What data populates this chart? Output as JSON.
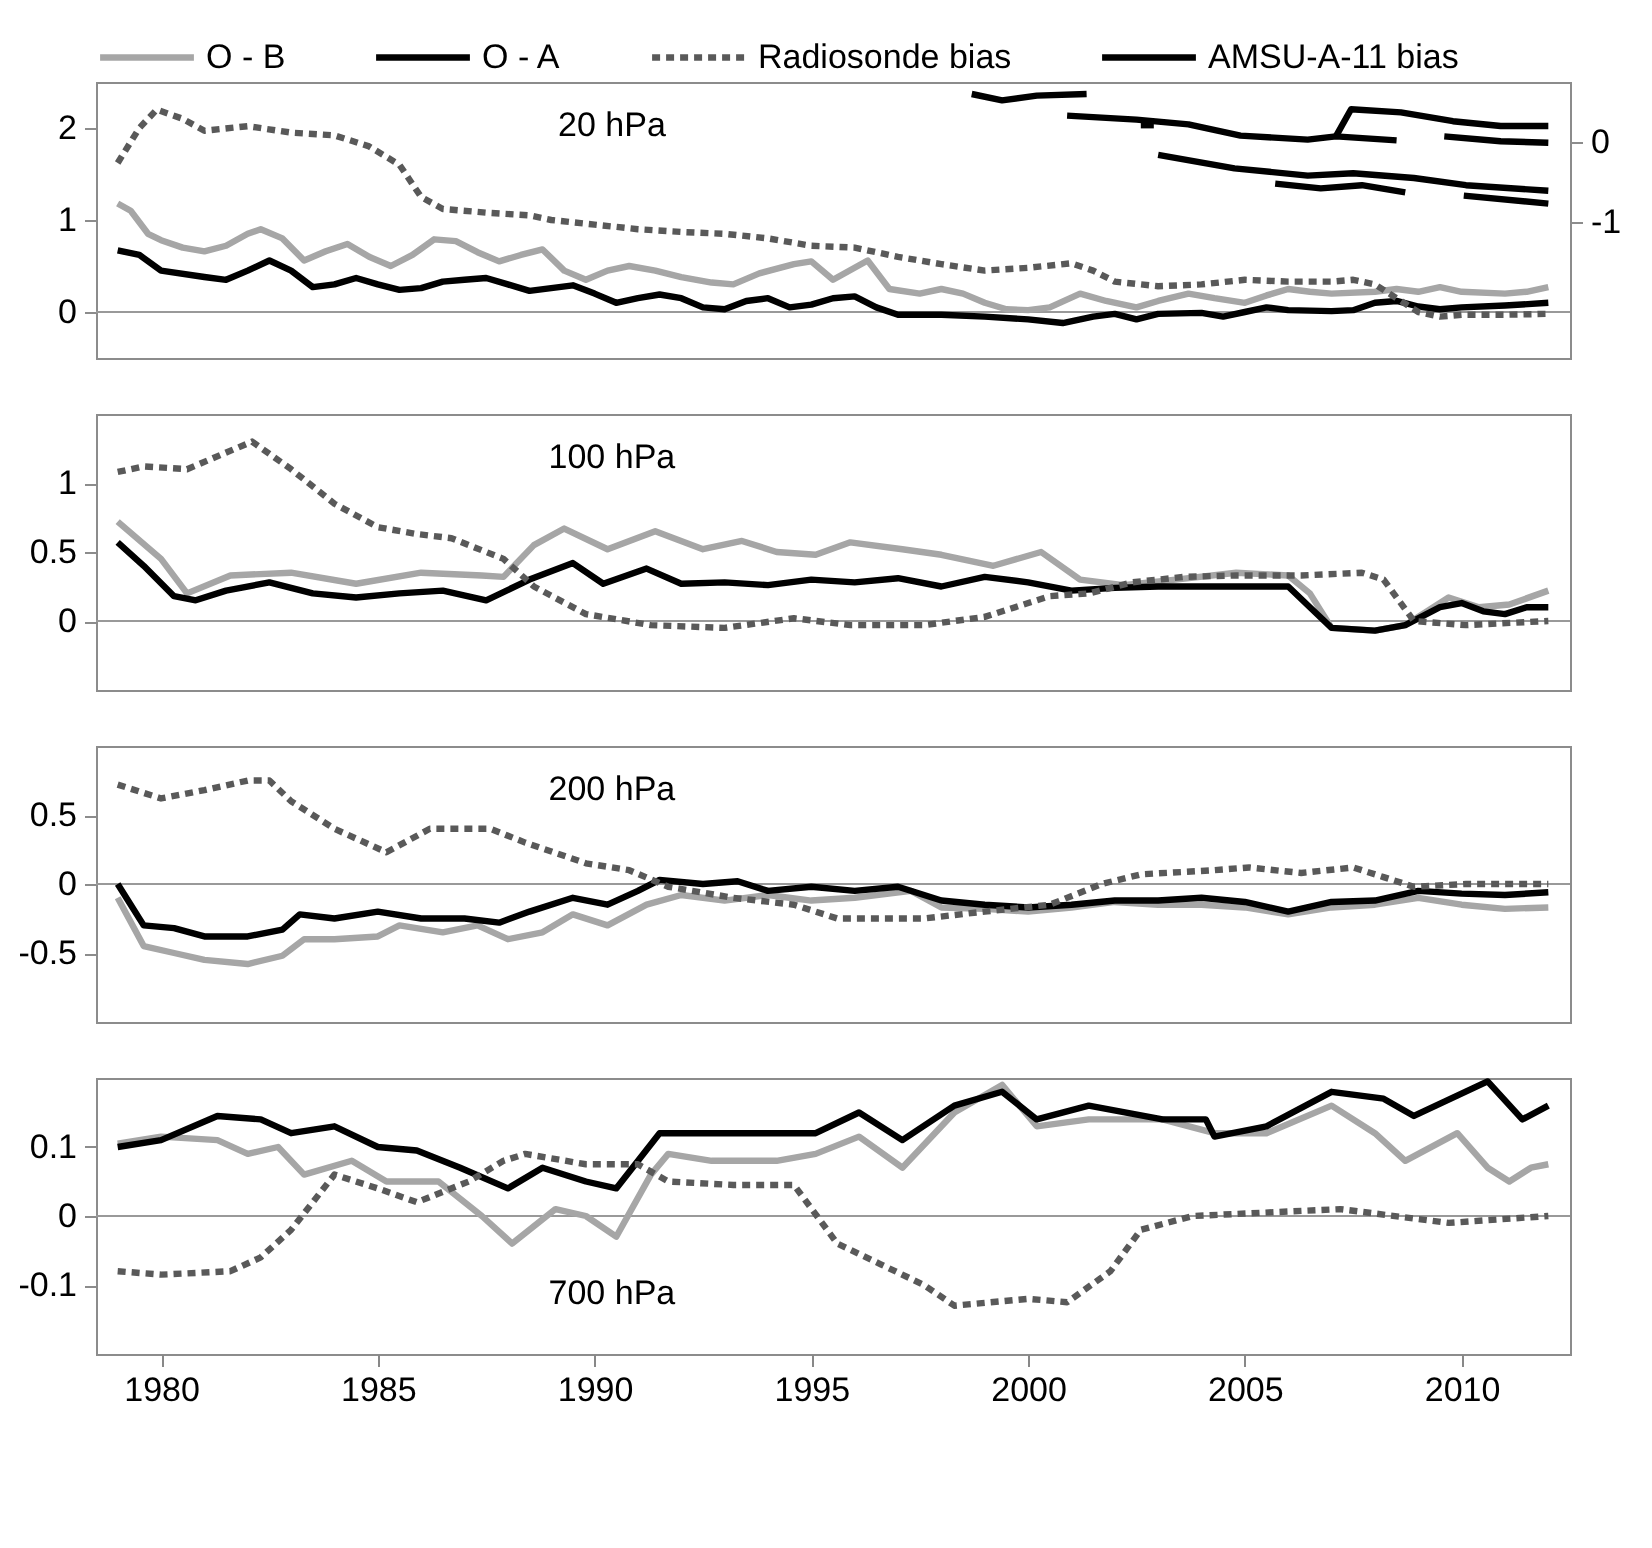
{
  "chart_data": [
    {
      "type": "line",
      "annotations": [
        "20 hPa"
      ],
      "legend": "top",
      "tick_labels": "y",
      "xlim": [
        1978.5,
        2012.5
      ],
      "xticks": [
        1980,
        1985,
        1990,
        1995,
        2000,
        2005,
        2010
      ],
      "ylim": [
        -0.5,
        2.5
      ],
      "yticks": [
        0,
        1,
        2
      ],
      "y2lim": [
        -2.7,
        0.75
      ],
      "y2ticks": [
        0,
        -1
      ],
      "ref_lines": [
        {
          "axis": "y",
          "value": 0,
          "color": "#999999"
        }
      ],
      "series": [
        {
          "name": "O - B",
          "color": "#a6a6a6",
          "line_style": "solid",
          "x": [
            1979.0,
            1979.3,
            1979.7,
            1980,
            1980.5,
            1981,
            1981.5,
            1982,
            1982.3,
            1982.8,
            1983.3,
            1983.8,
            1984.3,
            1984.8,
            1985.3,
            1985.8,
            1986.3,
            1986.8,
            1987.3,
            1987.8,
            1988.3,
            1988.8,
            1989.3,
            1989.8,
            1990.3,
            1990.8,
            1991.4,
            1992,
            1992.7,
            1993.2,
            1993.8,
            1994.6,
            1995,
            1995.5,
            1996.3,
            1996.8,
            1997.5,
            1998,
            1998.5,
            1999,
            1999.5,
            2000,
            2000.5,
            2001.2,
            2001.8,
            2002.5,
            2003,
            2003.7,
            2004.3,
            2005,
            2005.5,
            2006,
            2006.5,
            2007,
            2008,
            2008.5,
            2009,
            2009.5,
            2010,
            2011,
            2011.5,
            2012
          ],
          "values": [
            1.18,
            1.1,
            0.85,
            0.78,
            0.7,
            0.66,
            0.72,
            0.85,
            0.9,
            0.8,
            0.56,
            0.66,
            0.74,
            0.6,
            0.5,
            0.62,
            0.79,
            0.77,
            0.65,
            0.55,
            0.62,
            0.68,
            0.45,
            0.35,
            0.45,
            0.5,
            0.45,
            0.38,
            0.32,
            0.3,
            0.42,
            0.52,
            0.55,
            0.35,
            0.56,
            0.25,
            0.2,
            0.25,
            0.2,
            0.1,
            0.03,
            0.02,
            0.05,
            0.2,
            0.12,
            0.05,
            0.12,
            0.2,
            0.15,
            0.1,
            0.18,
            0.25,
            0.22,
            0.2,
            0.22,
            0.25,
            0.22,
            0.27,
            0.22,
            0.2,
            0.22,
            0.27
          ]
        },
        {
          "name": "O - A",
          "color": "#000000",
          "line_style": "solid",
          "x": [
            1979,
            1979.5,
            1980,
            1981,
            1981.5,
            1982,
            1982.5,
            1983,
            1983.5,
            1984,
            1984.5,
            1985,
            1985.5,
            1986,
            1986.5,
            1987,
            1987.5,
            1988,
            1988.5,
            1989,
            1989.5,
            1990,
            1990.5,
            1991,
            1991.5,
            1992,
            1992.5,
            1993,
            1993.5,
            1994,
            1994.5,
            1995,
            1995.5,
            1996,
            1996.5,
            1997,
            1998,
            1999,
            2000,
            2000.8,
            2001.5,
            2002,
            2002.5,
            2003,
            2004,
            2004.5,
            2005,
            2005.5,
            2006,
            2007,
            2007.5,
            2008,
            2008.5,
            2009,
            2009.5,
            2010,
            2011,
            2012
          ],
          "values": [
            0.67,
            0.62,
            0.45,
            0.38,
            0.35,
            0.45,
            0.56,
            0.45,
            0.27,
            0.3,
            0.37,
            0.3,
            0.24,
            0.26,
            0.33,
            0.35,
            0.37,
            0.3,
            0.23,
            0.26,
            0.29,
            0.2,
            0.1,
            0.15,
            0.19,
            0.15,
            0.05,
            0.03,
            0.12,
            0.15,
            0.05,
            0.08,
            0.15,
            0.17,
            0.05,
            -0.03,
            -0.03,
            -0.05,
            -0.08,
            -0.12,
            -0.05,
            -0.02,
            -0.08,
            -0.02,
            -0.01,
            -0.05,
            0.0,
            0.05,
            0.02,
            0.01,
            0.02,
            0.1,
            0.12,
            0.06,
            0.03,
            0.05,
            0.07,
            0.1
          ]
        },
        {
          "name": "Radiosonde bias",
          "color": "#595959",
          "line_style": "dotted",
          "x": [
            1979,
            1979.5,
            1979.9,
            1980.5,
            1981,
            1982,
            1983,
            1984,
            1984.8,
            1985.5,
            1986,
            1986.5,
            1987.5,
            1988.5,
            1989,
            1990,
            1991,
            1992,
            1993,
            1994,
            1995,
            1996,
            1997,
            1998,
            1999,
            2000,
            2001,
            2001.5,
            2002,
            2003,
            2004,
            2005,
            2006,
            2007,
            2007.5,
            2008,
            2008.5,
            2009,
            2009.5,
            2010,
            2011,
            2012
          ],
          "values": [
            1.62,
            2.0,
            2.2,
            2.1,
            1.97,
            2.02,
            1.95,
            1.92,
            1.8,
            1.6,
            1.25,
            1.12,
            1.08,
            1.05,
            1.0,
            0.95,
            0.9,
            0.87,
            0.85,
            0.8,
            0.72,
            0.7,
            0.6,
            0.52,
            0.45,
            0.48,
            0.53,
            0.45,
            0.33,
            0.28,
            0.3,
            0.35,
            0.33,
            0.33,
            0.35,
            0.3,
            0.15,
            0.0,
            -0.05,
            -0.03,
            -0.03,
            -0.02
          ]
        },
        {
          "name": "AMSU-A-11 bias",
          "color": "#000000",
          "line_style": "solid",
          "axis": "y2",
          "x": [
            1998.7,
            1999.4,
            2000.2,
            2001.35,
            null,
            2000.9,
            2002.5,
            2003.7,
            2004.9,
            2006.45,
            2007.1,
            2008.5,
            null,
            2007.1,
            2007.45,
            2008.6,
            2009.8,
            2010.9,
            2012.0,
            null,
            2002.6,
            2002.9,
            null,
            2009.6,
            2010.9,
            2012.0,
            null,
            2003.0,
            2004.76,
            2006.45,
            2007.5,
            2008.9,
            2010.1,
            2012.0,
            null,
            2005.7,
            2006.75,
            2007.7,
            2008.7,
            null,
            2010.05,
            2012.0
          ],
          "values": [
            0.6,
            0.52,
            0.58,
            0.6,
            null,
            0.33,
            0.28,
            0.22,
            0.08,
            0.03,
            0.07,
            0.02,
            null,
            0.07,
            0.41,
            0.37,
            0.26,
            0.2,
            0.2,
            null,
            0.21,
            0.21,
            null,
            0.07,
            0.01,
            -0.01,
            null,
            -0.16,
            -0.33,
            -0.42,
            -0.39,
            -0.45,
            -0.54,
            -0.61,
            null,
            -0.52,
            -0.58,
            -0.54,
            -0.63,
            null,
            -0.67,
            -0.77
          ]
        }
      ]
    },
    {
      "type": "line",
      "annotations": [
        "100 hPa"
      ],
      "tick_labels": "y",
      "xlim": [
        1978.5,
        2012.5
      ],
      "xticks": [
        1980,
        1985,
        1990,
        1995,
        2000,
        2005,
        2010
      ],
      "ylim": [
        -0.5,
        1.5
      ],
      "yticks": [
        0,
        0.5,
        1
      ],
      "ref_lines": [
        {
          "axis": "y",
          "value": 0,
          "color": "#999999"
        }
      ],
      "series": [
        {
          "color": "#a6a6a6",
          "line_style": "solid",
          "x": [
            1979,
            1980,
            1980.6,
            1981.6,
            1983,
            1984.5,
            1986,
            1987.4,
            1987.9,
            1988.6,
            1989.3,
            1990.3,
            1991.4,
            1992.5,
            1993.4,
            1994.2,
            1995.1,
            1995.9,
            1997.1,
            1998,
            1999.2,
            2000.3,
            2001.2,
            2002.2,
            2003.4,
            2004.8,
            2006,
            2006.5,
            2007,
            2008,
            2008.7,
            2009.7,
            2010.4,
            2011.1,
            2012
          ],
          "values": [
            0.72,
            0.45,
            0.2,
            0.33,
            0.35,
            0.27,
            0.35,
            0.33,
            0.32,
            0.55,
            0.67,
            0.52,
            0.65,
            0.52,
            0.58,
            0.5,
            0.48,
            0.57,
            0.52,
            0.48,
            0.4,
            0.5,
            0.3,
            0.26,
            0.3,
            0.35,
            0.33,
            0.2,
            -0.05,
            -0.07,
            -0.03,
            0.17,
            0.1,
            0.12,
            0.22
          ]
        },
        {
          "color": "#000000",
          "line_style": "solid",
          "x": [
            1979,
            1979.6,
            1980.3,
            1980.8,
            1981.5,
            1982.5,
            1983.5,
            1984.5,
            1985.5,
            1986.5,
            1987.5,
            1988.5,
            1989.5,
            1990.2,
            1991.2,
            1992,
            1993,
            1994,
            1995,
            1996,
            1997,
            1998,
            1999,
            2000,
            2001,
            2002,
            2003,
            2004,
            2005,
            2006,
            2006.5,
            2007,
            2008,
            2008.7,
            2009.5,
            2010,
            2010.5,
            2011,
            2011.5,
            2012
          ],
          "values": [
            0.57,
            0.4,
            0.18,
            0.15,
            0.22,
            0.28,
            0.2,
            0.17,
            0.2,
            0.22,
            0.15,
            0.3,
            0.42,
            0.27,
            0.38,
            0.27,
            0.28,
            0.26,
            0.3,
            0.28,
            0.31,
            0.25,
            0.32,
            0.28,
            0.22,
            0.24,
            0.25,
            0.25,
            0.25,
            0.25,
            0.1,
            -0.05,
            -0.07,
            -0.03,
            0.1,
            0.13,
            0.07,
            0.05,
            0.1,
            0.1
          ]
        },
        {
          "color": "#595959",
          "line_style": "dotted",
          "x": [
            1979,
            1979.6,
            1980.6,
            1982.1,
            1983,
            1984,
            1985,
            1985.9,
            1986.7,
            1987.9,
            1988.6,
            1989.8,
            1991.3,
            1993,
            1994.6,
            1995.9,
            1997.6,
            1999,
            2000.5,
            2001.4,
            2002.4,
            2003.6,
            2004.8,
            2006.3,
            2007.7,
            2008.2,
            2008.9,
            2010.1,
            2012
          ],
          "values": [
            1.08,
            1.12,
            1.1,
            1.3,
            1.1,
            0.85,
            0.68,
            0.63,
            0.6,
            0.45,
            0.25,
            0.05,
            -0.03,
            -0.05,
            0.02,
            -0.03,
            -0.03,
            0.03,
            0.18,
            0.2,
            0.28,
            0.32,
            0.33,
            0.33,
            0.35,
            0.3,
            0.0,
            -0.03,
            0.0
          ]
        }
      ]
    },
    {
      "type": "line",
      "annotations": [
        "200 hPa"
      ],
      "tick_labels": "y",
      "xlim": [
        1978.5,
        2012.5
      ],
      "xticks": [
        1980,
        1985,
        1990,
        1995,
        2000,
        2005,
        2010
      ],
      "ylim": [
        -1,
        1
      ],
      "yticks": [
        -0.5,
        0,
        0.5
      ],
      "ref_lines": [
        {
          "axis": "y",
          "value": 0,
          "color": "#999999"
        }
      ],
      "series": [
        {
          "color": "#a6a6a6",
          "line_style": "solid",
          "x": [
            1979,
            1979.6,
            1980.3,
            1981,
            1982,
            1982.8,
            1983.3,
            1984,
            1985,
            1985.5,
            1986.5,
            1987.3,
            1988,
            1988.8,
            1989.5,
            1990.3,
            1991.2,
            1992,
            1993,
            1994,
            1995,
            1996,
            1997.3,
            1998,
            1999,
            2000,
            2001,
            2002,
            2003,
            2004,
            2005,
            2006,
            2007,
            2008,
            2009,
            2010,
            2011,
            2012
          ],
          "values": [
            -0.1,
            -0.45,
            -0.5,
            -0.55,
            -0.58,
            -0.52,
            -0.4,
            -0.4,
            -0.38,
            -0.3,
            -0.35,
            -0.3,
            -0.4,
            -0.35,
            -0.22,
            -0.3,
            -0.15,
            -0.08,
            -0.12,
            -0.08,
            -0.12,
            -0.1,
            -0.05,
            -0.17,
            -0.18,
            -0.2,
            -0.17,
            -0.13,
            -0.15,
            -0.15,
            -0.17,
            -0.22,
            -0.17,
            -0.15,
            -0.1,
            -0.15,
            -0.18,
            -0.17
          ]
        },
        {
          "color": "#000000",
          "line_style": "solid",
          "x": [
            1979,
            1979.6,
            1980.3,
            1981,
            1982,
            1982.8,
            1983.2,
            1984,
            1985,
            1986,
            1987,
            1987.8,
            1988.5,
            1989.5,
            1990.3,
            1991,
            1991.5,
            1992.5,
            1993.3,
            1994,
            1995,
            1996,
            1997,
            1998,
            1999,
            2000,
            2001,
            2002,
            2003,
            2004,
            2005,
            2006,
            2007,
            2008,
            2009,
            2010,
            2011,
            2012
          ],
          "values": [
            0.0,
            -0.3,
            -0.32,
            -0.38,
            -0.38,
            -0.33,
            -0.22,
            -0.25,
            -0.2,
            -0.25,
            -0.25,
            -0.28,
            -0.2,
            -0.1,
            -0.15,
            -0.05,
            0.03,
            0.0,
            0.02,
            -0.05,
            -0.02,
            -0.05,
            -0.02,
            -0.12,
            -0.15,
            -0.17,
            -0.15,
            -0.12,
            -0.12,
            -0.1,
            -0.13,
            -0.2,
            -0.13,
            -0.12,
            -0.05,
            -0.07,
            -0.08,
            -0.06
          ]
        },
        {
          "color": "#595959",
          "line_style": "dotted",
          "x": [
            1979,
            1980,
            1981,
            1982,
            1982.5,
            1983,
            1984,
            1985.2,
            1986.2,
            1987.6,
            1988.4,
            1989.8,
            1990.8,
            1991.7,
            1993.2,
            1994.6,
            1995.6,
            1997.6,
            1999,
            2000.5,
            2001.7,
            2002.6,
            2004.3,
            2005.1,
            2006.3,
            2007.5,
            2008.2,
            2008.9,
            2010.1,
            2012
          ],
          "values": [
            0.72,
            0.62,
            0.68,
            0.75,
            0.75,
            0.6,
            0.4,
            0.23,
            0.4,
            0.4,
            0.3,
            0.15,
            0.1,
            -0.02,
            -0.1,
            -0.15,
            -0.25,
            -0.25,
            -0.2,
            -0.15,
            0.0,
            0.07,
            0.1,
            0.12,
            0.08,
            0.12,
            0.05,
            -0.02,
            0.0,
            0.0
          ]
        }
      ]
    },
    {
      "type": "line",
      "annotations": [
        "700 hPa"
      ],
      "xlim": [
        1978.5,
        2012.5
      ],
      "xticks": [
        1980,
        1985,
        1990,
        1995,
        2000,
        2005,
        2010
      ],
      "ylim": [
        -0.2,
        0.2
      ],
      "yticks": [
        -0.1,
        0,
        0.1
      ],
      "ref_lines": [
        {
          "axis": "y",
          "value": 0,
          "color": "#999999"
        }
      ],
      "series": [
        {
          "color": "#a6a6a6",
          "line_style": "solid",
          "x": [
            1979,
            1980,
            1981.3,
            1982,
            1982.7,
            1983.3,
            1984.4,
            1985.2,
            1986.4,
            1987.4,
            1988.1,
            1989.1,
            1989.8,
            1990.5,
            1991.3,
            1991.7,
            1992.7,
            1994.2,
            1995.1,
            1996.1,
            1997.1,
            1998.3,
            1999.4,
            2000.2,
            2001.4,
            2003.1,
            2004.3,
            2005.5,
            2007,
            2008,
            2008.7,
            2009.9,
            2010.6,
            2011.1,
            2011.6,
            2012
          ],
          "values": [
            0.105,
            0.115,
            0.11,
            0.09,
            0.1,
            0.06,
            0.08,
            0.05,
            0.05,
            0.0,
            -0.04,
            0.01,
            0.0,
            -0.03,
            0.06,
            0.09,
            0.08,
            0.08,
            0.09,
            0.115,
            0.07,
            0.15,
            0.19,
            0.13,
            0.14,
            0.14,
            0.12,
            0.12,
            0.16,
            0.12,
            0.08,
            0.12,
            0.07,
            0.05,
            0.07,
            0.075
          ]
        },
        {
          "color": "#000000",
          "line_style": "solid",
          "x": [
            1979,
            1980,
            1981.3,
            1982.3,
            1983,
            1984,
            1985,
            1985.9,
            1986.9,
            1988,
            1988.8,
            1989.8,
            1990.5,
            1991.5,
            1992.7,
            1995.1,
            1996.1,
            1997.1,
            1998.3,
            1999.4,
            2000.2,
            2001.4,
            2003.1,
            2004.1,
            2004.3,
            2005.5,
            2007,
            2008.2,
            2008.9,
            2010.6,
            2011.4,
            2012
          ],
          "values": [
            0.1,
            0.11,
            0.145,
            0.14,
            0.12,
            0.13,
            0.1,
            0.095,
            0.07,
            0.04,
            0.07,
            0.05,
            0.04,
            0.12,
            0.12,
            0.12,
            0.15,
            0.11,
            0.16,
            0.18,
            0.14,
            0.16,
            0.14,
            0.14,
            0.115,
            0.13,
            0.18,
            0.17,
            0.145,
            0.195,
            0.14,
            0.16
          ]
        },
        {
          "color": "#595959",
          "line_style": "dotted",
          "x": [
            1979,
            1980,
            1981.6,
            1982.3,
            1983,
            1984,
            1985,
            1985.9,
            1987.1,
            1987.9,
            1988.4,
            1989.8,
            1991,
            1991.7,
            1993.2,
            1994.6,
            1995.6,
            1996.6,
            1997.6,
            1998.3,
            2000,
            2000.9,
            2001.9,
            2002.6,
            2003.8,
            2007.2,
            2009.7,
            2012
          ],
          "values": [
            -0.08,
            -0.085,
            -0.08,
            -0.06,
            -0.02,
            0.06,
            0.04,
            0.02,
            0.05,
            0.08,
            0.09,
            0.075,
            0.075,
            0.05,
            0.045,
            0.045,
            -0.04,
            -0.07,
            -0.1,
            -0.13,
            -0.12,
            -0.125,
            -0.08,
            -0.02,
            0.0,
            0.01,
            -0.01,
            0.0
          ]
        }
      ]
    }
  ]
}
